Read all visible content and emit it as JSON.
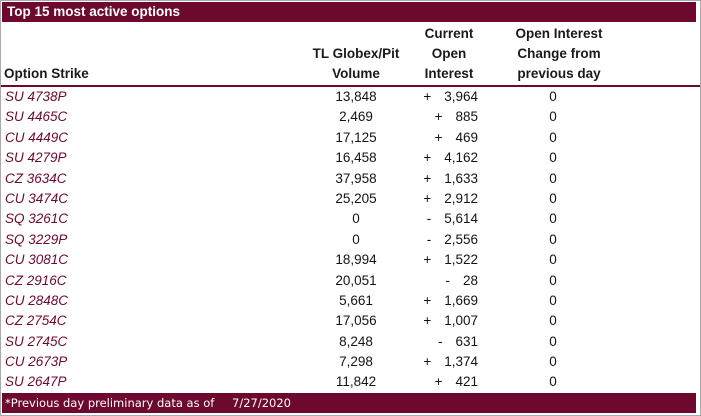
{
  "title": "Top 15 most active options",
  "colors": {
    "maroon": "#6d092f",
    "text": "#141414",
    "title_text": "#ffffff"
  },
  "table": {
    "headers": {
      "strike": "Option Strike",
      "volume": "TL Globex/Pit\nVolume",
      "open_interest": "Current\nOpen\nInterest",
      "change": "Open Interest\nChange from\nprevious day"
    },
    "rows": [
      {
        "strike": "SU 4738P",
        "volume": "13,848",
        "oi_sign": "+",
        "oi_value": "3,964",
        "change": "0"
      },
      {
        "strike": "SU 4465C",
        "volume": "2,469",
        "oi_sign": "+",
        "oi_value": "885",
        "change": "0"
      },
      {
        "strike": "CU 4449C",
        "volume": "17,125",
        "oi_sign": "+",
        "oi_value": "469",
        "change": "0"
      },
      {
        "strike": "SU 4279P",
        "volume": "16,458",
        "oi_sign": "+",
        "oi_value": "4,162",
        "change": "0"
      },
      {
        "strike": "CZ 3634C",
        "volume": "37,958",
        "oi_sign": "+",
        "oi_value": "1,633",
        "change": "0"
      },
      {
        "strike": "CU 3474C",
        "volume": "25,205",
        "oi_sign": "+",
        "oi_value": "2,912",
        "change": "0"
      },
      {
        "strike": "SQ 3261C",
        "volume": "0",
        "oi_sign": "-",
        "oi_value": "5,614",
        "change": "0"
      },
      {
        "strike": "SQ 3229P",
        "volume": "0",
        "oi_sign": "-",
        "oi_value": "2,556",
        "change": "0"
      },
      {
        "strike": "CU 3081C",
        "volume": "18,994",
        "oi_sign": "+",
        "oi_value": "1,522",
        "change": "0"
      },
      {
        "strike": "CZ 2916C",
        "volume": "20,051",
        "oi_sign": "-",
        "oi_value": "28",
        "change": "0"
      },
      {
        "strike": "CU 2848C",
        "volume": "5,661",
        "oi_sign": "+",
        "oi_value": "1,669",
        "change": "0"
      },
      {
        "strike": "CZ 2754C",
        "volume": "17,056",
        "oi_sign": "+",
        "oi_value": "1,007",
        "change": "0"
      },
      {
        "strike": "SU 2745C",
        "volume": "8,248",
        "oi_sign": "-",
        "oi_value": "631",
        "change": "0"
      },
      {
        "strike": "CU 2673P",
        "volume": "7,298",
        "oi_sign": "+",
        "oi_value": "1,374",
        "change": "0"
      },
      {
        "strike": "SU 2647P",
        "volume": "11,842",
        "oi_sign": "+",
        "oi_value": "421",
        "change": "0"
      }
    ]
  },
  "footer": {
    "note": "*Previous day preliminary data as of",
    "date": "7/27/2020"
  },
  "chart_data": {
    "type": "table",
    "title": "Top 15 most active options",
    "columns": [
      "Option Strike",
      "TL Globex/Pit Volume",
      "Current Open Interest",
      "Open Interest Change from previous day"
    ],
    "rows": [
      [
        "SU 4738P",
        13848,
        3964,
        0
      ],
      [
        "SU 4465C",
        2469,
        885,
        0
      ],
      [
        "CU 4449C",
        17125,
        469,
        0
      ],
      [
        "SU 4279P",
        16458,
        4162,
        0
      ],
      [
        "CZ 3634C",
        37958,
        1633,
        0
      ],
      [
        "CU 3474C",
        25205,
        2912,
        0
      ],
      [
        "SQ 3261C",
        0,
        -5614,
        0
      ],
      [
        "SQ 3229P",
        0,
        -2556,
        0
      ],
      [
        "CU 3081C",
        18994,
        1522,
        0
      ],
      [
        "CZ 2916C",
        20051,
        -28,
        0
      ],
      [
        "CU 2848C",
        5661,
        1669,
        0
      ],
      [
        "CZ 2754C",
        17056,
        1007,
        0
      ],
      [
        "SU 2745C",
        8248,
        -631,
        0
      ],
      [
        "CU 2673P",
        7298,
        1374,
        0
      ],
      [
        "SU 2647P",
        11842,
        421,
        0
      ]
    ],
    "footnote": "*Previous day preliminary data as of 7/27/2020"
  }
}
